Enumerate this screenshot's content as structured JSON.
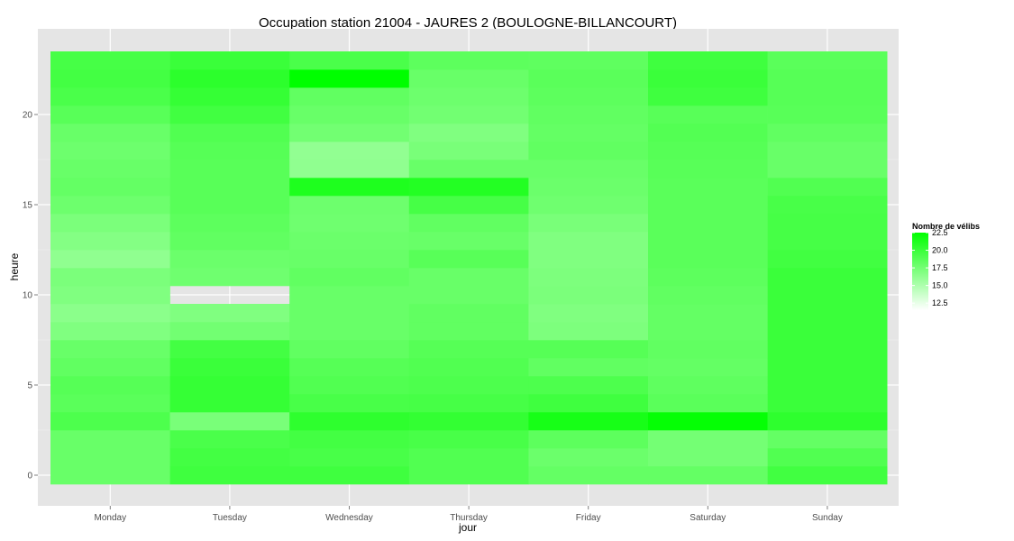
{
  "chart_data": {
    "type": "heatmap",
    "title": "Occupation station 21004 - JAURES 2 (BOULOGNE-BILLANCOURT)",
    "xlabel": "jour",
    "ylabel": "heure",
    "x_categories": [
      "Monday",
      "Tuesday",
      "Wednesday",
      "Thursday",
      "Friday",
      "Saturday",
      "Sunday"
    ],
    "y_ticks": [
      0,
      5,
      10,
      15,
      20
    ],
    "y_tick_labels": [
      "0",
      "5",
      "10",
      "15",
      "20"
    ],
    "ylim": [
      -0.5,
      23.5
    ],
    "grid": true,
    "color_scale": {
      "low": 11.5,
      "high": 22.5,
      "low_color": "#ffffff",
      "high_color": "#00ff00",
      "legend_title": "Nombre de vélibs",
      "legend_position": "right",
      "legend_ticks": [
        22.5,
        20.0,
        17.5,
        15.0,
        12.5
      ],
      "legend_tick_labels": [
        "22.5",
        "20.0",
        "17.5",
        "15.0",
        "12.5"
      ]
    },
    "hours": [
      0,
      1,
      2,
      3,
      4,
      5,
      6,
      7,
      8,
      9,
      10,
      11,
      12,
      13,
      14,
      15,
      16,
      17,
      18,
      19,
      20,
      21,
      22,
      23
    ],
    "values": {
      "Monday": [
        18.0,
        18.0,
        18.0,
        19.2,
        18.6,
        18.8,
        18.3,
        18.0,
        17.0,
        16.5,
        17.0,
        17.2,
        16.3,
        16.8,
        17.2,
        17.8,
        18.2,
        18.0,
        17.8,
        18.0,
        18.7,
        19.3,
        19.6,
        19.5
      ],
      "Tuesday": [
        19.8,
        19.6,
        19.3,
        17.3,
        20.2,
        20.2,
        20.0,
        19.6,
        17.6,
        17.0,
        null,
        17.7,
        17.9,
        18.3,
        18.5,
        18.7,
        18.7,
        18.7,
        18.8,
        19.0,
        19.7,
        20.2,
        20.6,
        20.0
      ],
      "Wednesday": [
        19.8,
        19.4,
        19.6,
        20.5,
        19.4,
        19.0,
        18.8,
        18.3,
        18.0,
        18.0,
        18.0,
        18.3,
        18.0,
        17.9,
        17.7,
        17.8,
        21.2,
        16.3,
        16.2,
        17.6,
        18.0,
        18.3,
        22.5,
        19.3
      ],
      "Thursday": [
        19.0,
        19.0,
        19.4,
        20.3,
        19.5,
        19.2,
        19.0,
        18.8,
        18.3,
        18.3,
        18.0,
        18.0,
        18.7,
        18.0,
        18.3,
        19.5,
        21.0,
        18.0,
        17.3,
        17.0,
        17.6,
        17.8,
        18.0,
        18.5
      ],
      "Friday": [
        18.2,
        17.9,
        18.5,
        21.5,
        19.8,
        19.2,
        18.3,
        18.8,
        17.1,
        17.0,
        17.2,
        17.1,
        17.0,
        17.0,
        17.3,
        17.7,
        17.9,
        18.0,
        18.3,
        18.2,
        18.3,
        18.5,
        18.6,
        18.4
      ],
      "Saturday": [
        18.2,
        17.5,
        17.5,
        22.3,
        18.6,
        18.4,
        18.2,
        18.3,
        18.2,
        18.2,
        18.3,
        18.5,
        18.6,
        18.6,
        18.6,
        18.6,
        18.6,
        18.7,
        18.8,
        18.9,
        18.7,
        19.8,
        20.0,
        19.8
      ],
      "Sunday": [
        19.7,
        19.0,
        18.2,
        20.5,
        20.0,
        20.0,
        20.0,
        20.0,
        20.0,
        20.0,
        20.0,
        20.0,
        19.7,
        19.5,
        19.5,
        19.4,
        19.0,
        18.0,
        18.0,
        18.3,
        18.7,
        18.8,
        18.8,
        18.6
      ]
    }
  }
}
